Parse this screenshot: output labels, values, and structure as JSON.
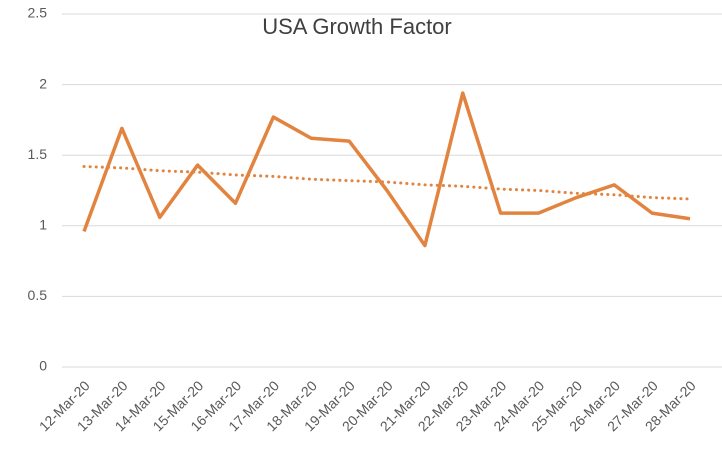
{
  "chart_data": {
    "type": "line",
    "title": "USA Growth Factor",
    "categories": [
      "12-Mar-20",
      "13-Mar-20",
      "14-Mar-20",
      "15-Mar-20",
      "16-Mar-20",
      "17-Mar-20",
      "18-Mar-20",
      "19-Mar-20",
      "20-Mar-20",
      "21-Mar-20",
      "22-Mar-20",
      "23-Mar-20",
      "24-Mar-20",
      "25-Mar-20",
      "26-Mar-20",
      "27-Mar-20",
      "28-Mar-20"
    ],
    "series": [
      {
        "color": "#e2843f",
        "style": "solid",
        "values": [
          0.96,
          1.69,
          1.06,
          1.43,
          1.16,
          1.77,
          1.62,
          1.6,
          1.25,
          0.86,
          1.94,
          1.09,
          1.09,
          1.2,
          1.29,
          1.09,
          1.05
        ]
      },
      {
        "color": "#e2843f",
        "style": "dotted",
        "values": [
          1.42,
          1.41,
          1.39,
          1.38,
          1.36,
          1.35,
          1.33,
          1.32,
          1.31,
          1.29,
          1.28,
          1.26,
          1.25,
          1.23,
          1.22,
          1.2,
          1.19
        ]
      }
    ],
    "ylim": [
      0,
      2.5
    ],
    "yticks": [
      0,
      0.5,
      1,
      1.5,
      2,
      2.5
    ],
    "grid": true
  }
}
